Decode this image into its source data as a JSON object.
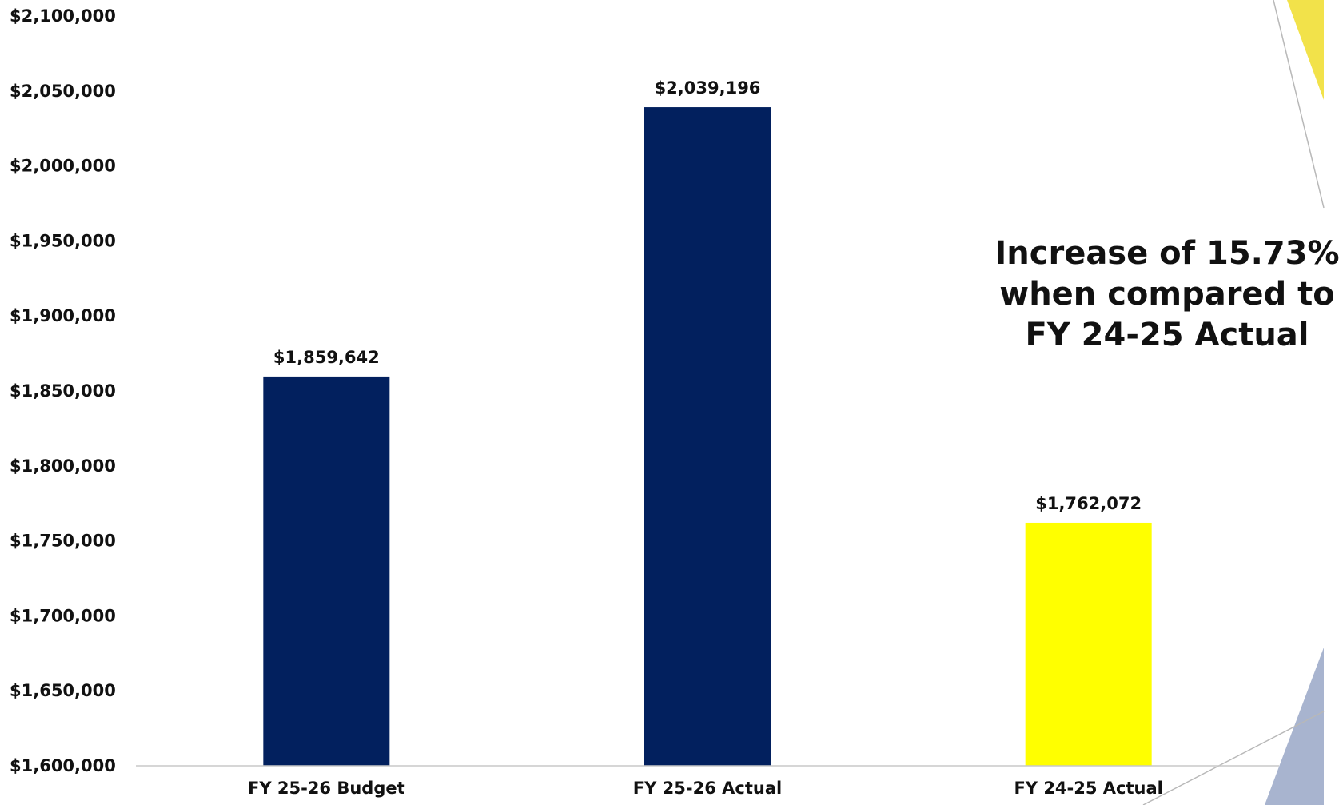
{
  "chart_data": {
    "type": "bar",
    "title": "",
    "xlabel": "",
    "ylabel": "",
    "ylim": [
      1600000,
      2100000
    ],
    "yticks": [
      1600000,
      1650000,
      1700000,
      1750000,
      1800000,
      1850000,
      1900000,
      1950000,
      2000000,
      2050000,
      2100000
    ],
    "ytick_labels": [
      "$1,600,000",
      "$1,650,000",
      "$1,700,000",
      "$1,750,000",
      "$1,800,000",
      "$1,850,000",
      "$1,900,000",
      "$1,950,000",
      "$2,000,000",
      "$2,050,000",
      "$2,100,000"
    ],
    "categories": [
      "FY 25-26 Budget",
      "FY 25-26 Actual",
      "FY 24-25 Actual"
    ],
    "values": [
      1859642,
      2039196,
      1762072
    ],
    "value_labels": [
      "$1,859,642",
      "$2,039,196",
      "$1,762,072"
    ],
    "bar_colors": [
      "#02205e",
      "#02205e",
      "#ffff00"
    ],
    "grid": false,
    "annotation": {
      "lines": [
        "Increase of 15.73%",
        "when compared to",
        "FY 24-25 Actual"
      ]
    }
  },
  "decor": {
    "accent_yellow": "#f2e24a",
    "accent_blue": "#a8b4cf",
    "line_gray": "#b8b8b8"
  }
}
